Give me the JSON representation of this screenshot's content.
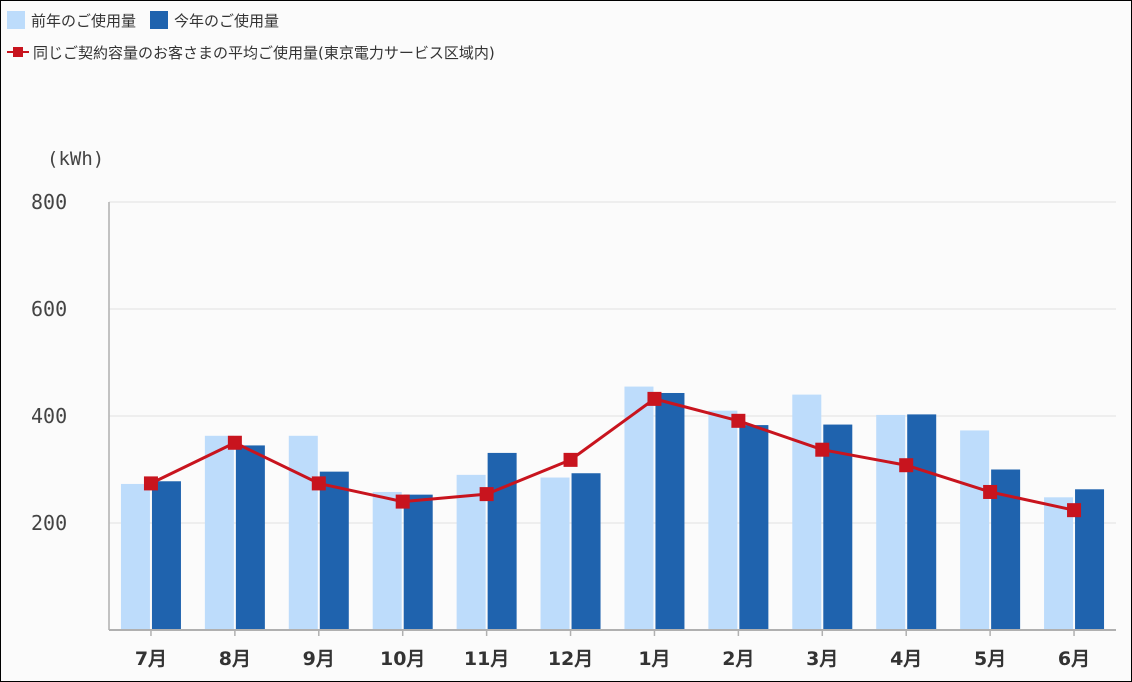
{
  "legend": {
    "prev_year_label": "前年のご使用量",
    "this_year_label": "今年のご使用量",
    "average_label": "同じご契約容量のお客さまの平均ご使用量(東京電力サービス区域内)"
  },
  "colors": {
    "prev_year": "#bddcfb",
    "this_year": "#1f63ae",
    "average": "#c8141e",
    "grid": "#e2e2e2",
    "axis": "#b0b0b0"
  },
  "chart_data": {
    "type": "bar",
    "ylabel": "(kWh)",
    "ylim": [
      0,
      800
    ],
    "yticks": [
      200,
      400,
      600,
      800
    ],
    "grid": true,
    "legend_position": "top-left",
    "categories": [
      "7月",
      "8月",
      "9月",
      "10月",
      "11月",
      "12月",
      "1月",
      "2月",
      "3月",
      "4月",
      "5月",
      "6月"
    ],
    "series": [
      {
        "name": "前年のご使用量",
        "type": "bar",
        "values": [
          273,
          363,
          363,
          258,
          290,
          285,
          455,
          410,
          440,
          402,
          373,
          248
        ]
      },
      {
        "name": "今年のご使用量",
        "type": "bar",
        "values": [
          278,
          345,
          296,
          253,
          331,
          293,
          443,
          383,
          384,
          403,
          300,
          263
        ]
      },
      {
        "name": "同じご契約容量のお客さまの平均ご使用量(東京電力サービス区域内)",
        "type": "line",
        "values": [
          274,
          350,
          274,
          240,
          254,
          318,
          432,
          391,
          337,
          308,
          258,
          224
        ]
      }
    ]
  }
}
